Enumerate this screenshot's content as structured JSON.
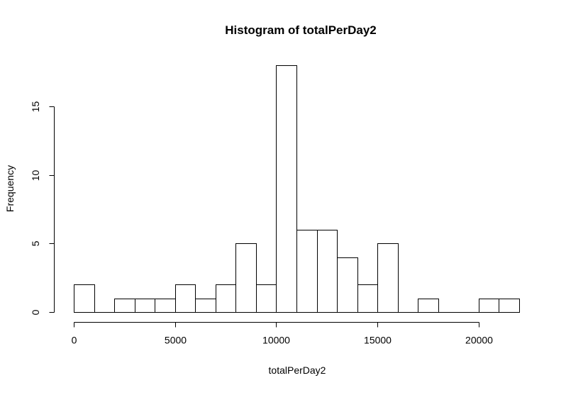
{
  "chart_data": {
    "type": "bar",
    "title": "Histogram of totalPerDay2",
    "xlabel": "totalPerDay2",
    "ylabel": "Frequency",
    "bin_edges": [
      0,
      1000,
      2000,
      3000,
      4000,
      5000,
      6000,
      7000,
      8000,
      9000,
      10000,
      11000,
      12000,
      13000,
      14000,
      15000,
      16000,
      17000,
      18000,
      19000,
      20000,
      21000,
      22000
    ],
    "values": [
      2,
      0,
      1,
      1,
      1,
      2,
      1,
      2,
      5,
      2,
      18,
      6,
      6,
      4,
      2,
      5,
      0,
      1,
      0,
      0,
      1,
      1
    ],
    "xlim": [
      0,
      22000
    ],
    "ylim": [
      0,
      18
    ],
    "x_ticks": [
      0,
      5000,
      10000,
      15000,
      20000
    ],
    "y_ticks": [
      0,
      5,
      10,
      15
    ],
    "grid": false,
    "legend": "none"
  }
}
